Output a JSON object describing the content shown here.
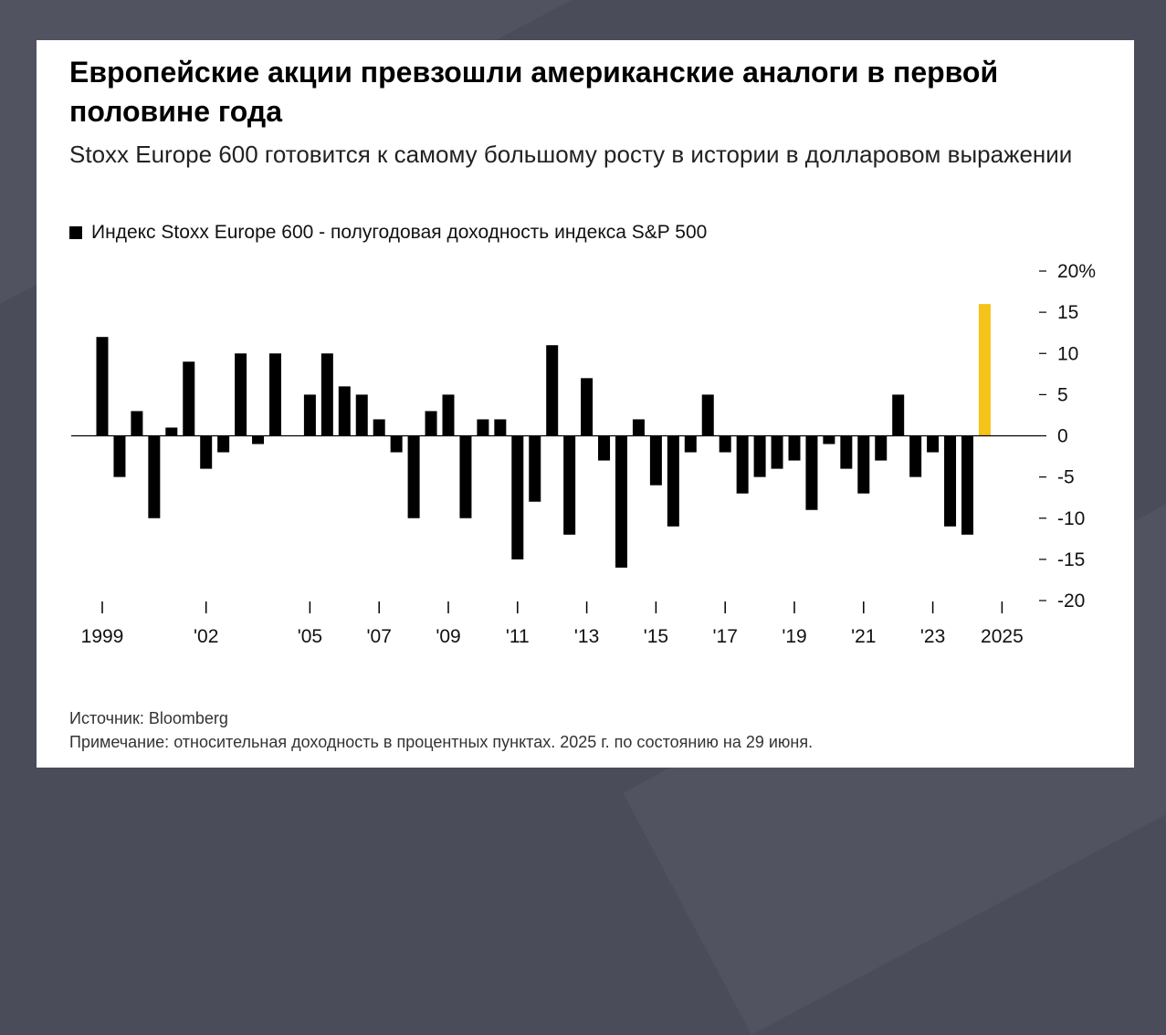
{
  "title": "Европейские акции превзошли американские аналоги в первой половине года",
  "subtitle": "Stoxx Europe 600 готовится к самому большому росту в истории в долларовом выражении",
  "legend_label": "Индекс Stoxx Europe 600 - полугодовая доходность индекса S&P 500",
  "source": "Источник: Bloomberg",
  "note": "Примечание: относительная доходность в процентных пунктах. 2025 г. по состоянию на 29 июня.",
  "colors": {
    "bar": "#000000",
    "highlight": "#f5c319",
    "axis": "#000000"
  },
  "chart_data": {
    "type": "bar",
    "title": "Европейские акции превзошли американские аналоги в первой половине года",
    "ylabel": "",
    "xlabel": "",
    "ylim": [
      -20,
      20
    ],
    "y_ticks": [
      {
        "value": 20,
        "label": "20%"
      },
      {
        "value": 15,
        "label": "15"
      },
      {
        "value": 10,
        "label": "10"
      },
      {
        "value": 5,
        "label": "5"
      },
      {
        "value": 0,
        "label": "0"
      },
      {
        "value": -5,
        "label": "-5"
      },
      {
        "value": -10,
        "label": "-10"
      },
      {
        "value": -15,
        "label": "-15"
      },
      {
        "value": -20,
        "label": "-20"
      }
    ],
    "y_axis_side": "right",
    "start_year": 1999,
    "end_year": 2025,
    "periods_per_year": 2,
    "values": [
      12,
      -5,
      3,
      -10,
      1,
      9,
      -4,
      -2,
      10,
      -1,
      10,
      0,
      5,
      10,
      6,
      5,
      2,
      -2,
      -10,
      3,
      5,
      -10,
      2,
      2,
      -15,
      -8,
      11,
      -12,
      7,
      -3,
      -16,
      2,
      -6,
      -11,
      -2,
      5,
      -2,
      -7,
      -5,
      -4,
      -3,
      -9,
      -1,
      -4,
      -7,
      -3,
      5,
      -5,
      -2,
      -11,
      -12,
      16
    ],
    "highlight_last": true,
    "x_ticks": [
      {
        "year": 1999,
        "label": "1999"
      },
      {
        "year": 2002,
        "label": "'02"
      },
      {
        "year": 2005,
        "label": "'05"
      },
      {
        "year": 2007,
        "label": "'07"
      },
      {
        "year": 2009,
        "label": "'09"
      },
      {
        "year": 2011,
        "label": "'11"
      },
      {
        "year": 2013,
        "label": "'13"
      },
      {
        "year": 2015,
        "label": "'15"
      },
      {
        "year": 2017,
        "label": "'17"
      },
      {
        "year": 2019,
        "label": "'19"
      },
      {
        "year": 2021,
        "label": "'21"
      },
      {
        "year": 2023,
        "label": "'23"
      },
      {
        "year": 2025,
        "label": "2025"
      }
    ]
  }
}
